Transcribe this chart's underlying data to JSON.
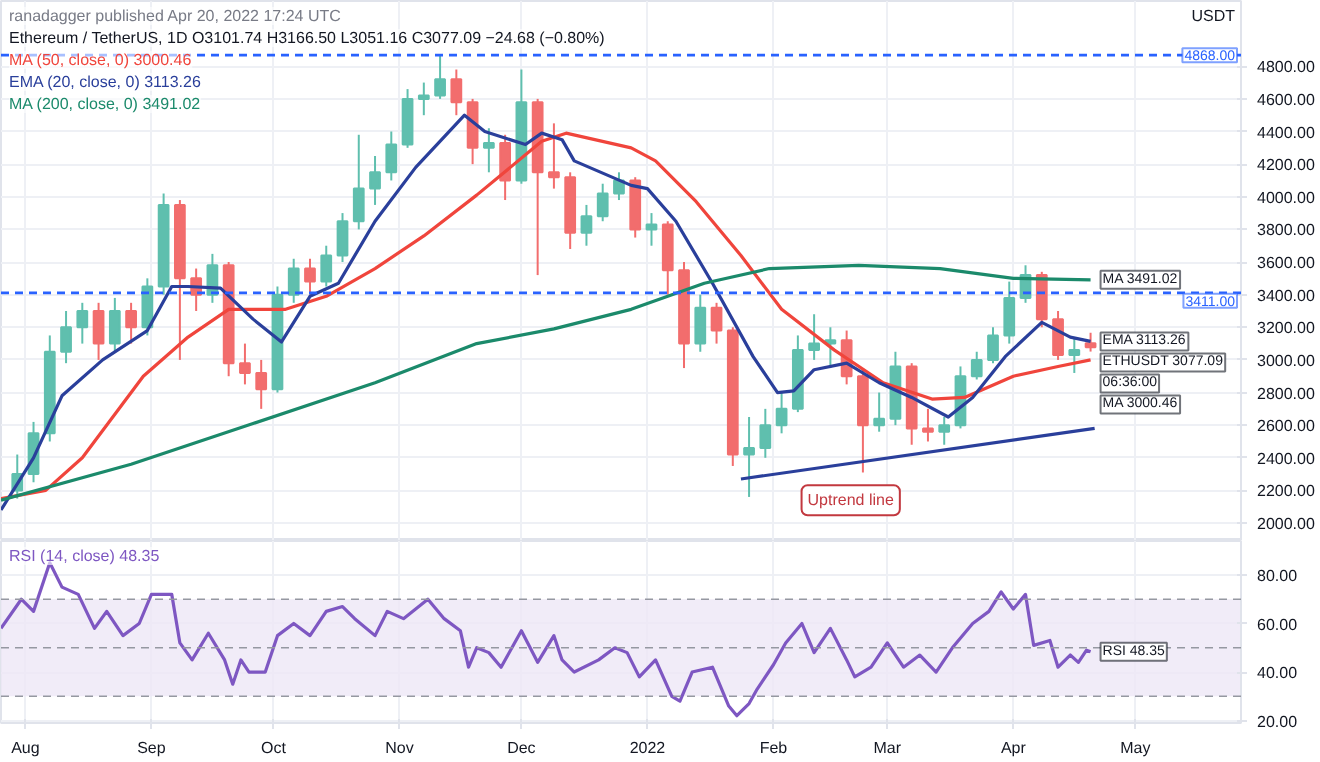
{
  "chart_data": [
    {
      "type": "candlestick",
      "title": "Ethereum / TetherUS, 1D",
      "subtitle": "O3101.74 H3166.50 L3051.16 C3077.09 −24.68 (−0.80%)",
      "ylabel": "USDT",
      "annotations": [
        "ranadagger published Apr 20, 2022 17:24 UTC",
        {
          "text": "Uptrend line",
          "x": "2022-02-20",
          "y": 2360
        },
        {
          "text": "MA 3491.02",
          "x": "2022-04-20",
          "y": 3491.02
        },
        {
          "text": "EMA 3113.26",
          "x": "2022-04-20",
          "y": 3113.26
        },
        {
          "text": "ETHUSDT 3077.09",
          "x": "2022-04-20",
          "y": 3077.09
        },
        {
          "text": "06:36:00",
          "x": "2022-04-20",
          "y": 3077.09
        },
        {
          "text": "MA 3000.46",
          "x": "2022-04-20",
          "y": 3000.46
        }
      ],
      "x": [
        "2021-07-30",
        "2021-08-03",
        "2021-08-07",
        "2021-08-11",
        "2021-08-15",
        "2021-08-19",
        "2021-08-23",
        "2021-08-27",
        "2021-08-31",
        "2021-09-04",
        "2021-09-08",
        "2021-09-12",
        "2021-09-16",
        "2021-09-20",
        "2021-09-24",
        "2021-09-28",
        "2021-10-02",
        "2021-10-06",
        "2021-10-10",
        "2021-10-14",
        "2021-10-18",
        "2021-10-22",
        "2021-10-26",
        "2021-10-30",
        "2021-11-03",
        "2021-11-07",
        "2021-11-11",
        "2021-11-15",
        "2021-11-19",
        "2021-11-23",
        "2021-11-27",
        "2021-12-01",
        "2021-12-05",
        "2021-12-09",
        "2021-12-13",
        "2021-12-17",
        "2021-12-21",
        "2021-12-25",
        "2021-12-29",
        "2022-01-02",
        "2022-01-06",
        "2022-01-10",
        "2022-01-14",
        "2022-01-18",
        "2022-01-22",
        "2022-01-26",
        "2022-01-30",
        "2022-02-03",
        "2022-02-07",
        "2022-02-11",
        "2022-02-15",
        "2022-02-19",
        "2022-02-23",
        "2022-02-27",
        "2022-03-03",
        "2022-03-07",
        "2022-03-11",
        "2022-03-15",
        "2022-03-19",
        "2022-03-23",
        "2022-03-27",
        "2022-03-31",
        "2022-04-04",
        "2022-04-08",
        "2022-04-12",
        "2022-04-16",
        "2022-04-20"
      ],
      "ohlc": [
        [
          2200,
          2420,
          2150,
          2300
        ],
        [
          2300,
          2620,
          2250,
          2550
        ],
        [
          2550,
          3150,
          2500,
          3050
        ],
        [
          3050,
          3300,
          2980,
          3200
        ],
        [
          3200,
          3350,
          3100,
          3300
        ],
        [
          3300,
          3350,
          3000,
          3100
        ],
        [
          3100,
          3380,
          3050,
          3300
        ],
        [
          3300,
          3350,
          3100,
          3200
        ],
        [
          3200,
          3500,
          3150,
          3450
        ],
        [
          3450,
          4020,
          3400,
          3950
        ],
        [
          3950,
          3980,
          3000,
          3500
        ],
        [
          3500,
          3560,
          3300,
          3400
        ],
        [
          3400,
          3650,
          3350,
          3580
        ],
        [
          3580,
          3600,
          2900,
          2980
        ],
        [
          2980,
          3100,
          2850,
          2920
        ],
        [
          2920,
          3000,
          2700,
          2820
        ],
        [
          2820,
          3450,
          2800,
          3400
        ],
        [
          3400,
          3620,
          3350,
          3560
        ],
        [
          3560,
          3620,
          3400,
          3480
        ],
        [
          3480,
          3700,
          3450,
          3640
        ],
        [
          3640,
          3900,
          3600,
          3850
        ],
        [
          3850,
          4380,
          3800,
          4050
        ],
        [
          4050,
          4250,
          3950,
          4150
        ],
        [
          4150,
          4400,
          4100,
          4320
        ],
        [
          4320,
          4660,
          4300,
          4600
        ],
        [
          4600,
          4700,
          4500,
          4620
        ],
        [
          4620,
          4868,
          4600,
          4720
        ],
        [
          4720,
          4780,
          4500,
          4580
        ],
        [
          4580,
          4600,
          4200,
          4300
        ],
        [
          4300,
          4420,
          4150,
          4330
        ],
        [
          4330,
          4380,
          3980,
          4100
        ],
        [
          4100,
          4780,
          4080,
          4580
        ],
        [
          4580,
          4600,
          3520,
          4150
        ],
        [
          4150,
          4450,
          4050,
          4120
        ],
        [
          4120,
          4150,
          3680,
          3780
        ],
        [
          3780,
          3950,
          3700,
          3880
        ],
        [
          3880,
          4080,
          3850,
          4020
        ],
        [
          4020,
          4150,
          3980,
          4100
        ],
        [
          4100,
          4120,
          3750,
          3800
        ],
        [
          3800,
          3900,
          3700,
          3830
        ],
        [
          3830,
          3850,
          3400,
          3550
        ],
        [
          3550,
          3600,
          2950,
          3100
        ],
        [
          3100,
          3400,
          3050,
          3320
        ],
        [
          3320,
          3350,
          3100,
          3180
        ],
        [
          3180,
          3200,
          2350,
          2420
        ],
        [
          2420,
          2650,
          2160,
          2460
        ],
        [
          2460,
          2700,
          2400,
          2600
        ],
        [
          2600,
          2800,
          2550,
          2700
        ],
        [
          2700,
          3150,
          2680,
          3060
        ],
        [
          3060,
          3280,
          3000,
          3100
        ],
        [
          3100,
          3200,
          2950,
          3120
        ],
        [
          3120,
          3180,
          2850,
          2900
        ],
        [
          2900,
          2950,
          2310,
          2600
        ],
        [
          2600,
          2800,
          2560,
          2640
        ],
        [
          2640,
          3050,
          2600,
          2960
        ],
        [
          2960,
          2980,
          2480,
          2580
        ],
        [
          2580,
          2700,
          2500,
          2560
        ],
        [
          2560,
          2650,
          2480,
          2600
        ],
        [
          2600,
          2960,
          2580,
          2900
        ],
        [
          2900,
          3050,
          2880,
          3000
        ],
        [
          3000,
          3200,
          2980,
          3150
        ],
        [
          3150,
          3480,
          3100,
          3380
        ],
        [
          3380,
          3580,
          3350,
          3520
        ],
        [
          3520,
          3540,
          3200,
          3250
        ],
        [
          3250,
          3300,
          3000,
          3030
        ],
        [
          3030,
          3130,
          2920,
          3060
        ],
        [
          3101.74,
          3166.5,
          3051.16,
          3077.09
        ]
      ],
      "colors": [
        "#5fbfae",
        "#5fbfae",
        "#5fbfae",
        "#5fbfae",
        "#5fbfae",
        "#f26d6d",
        "#5fbfae",
        "#f26d6d",
        "#5fbfae",
        "#5fbfae",
        "#f26d6d",
        "#f26d6d",
        "#5fbfae",
        "#f26d6d",
        "#f26d6d",
        "#f26d6d",
        "#5fbfae",
        "#5fbfae",
        "#f26d6d",
        "#5fbfae",
        "#5fbfae",
        "#5fbfae",
        "#5fbfae",
        "#5fbfae",
        "#5fbfae",
        "#5fbfae",
        "#5fbfae",
        "#f26d6d",
        "#f26d6d",
        "#5fbfae",
        "#f26d6d",
        "#5fbfae",
        "#f26d6d",
        "#f26d6d",
        "#f26d6d",
        "#5fbfae",
        "#5fbfae",
        "#5fbfae",
        "#f26d6d",
        "#5fbfae",
        "#f26d6d",
        "#f26d6d",
        "#5fbfae",
        "#f26d6d",
        "#f26d6d",
        "#5fbfae",
        "#5fbfae",
        "#5fbfae",
        "#5fbfae",
        "#5fbfae",
        "#5fbfae",
        "#f26d6d",
        "#f26d6d",
        "#5fbfae",
        "#5fbfae",
        "#f26d6d",
        "#f26d6d",
        "#5fbfae",
        "#5fbfae",
        "#5fbfae",
        "#5fbfae",
        "#5fbfae",
        "#5fbfae",
        "#f26d6d",
        "#f26d6d",
        "#5fbfae",
        "#f26d6d"
      ],
      "series": [
        {
          "type": "line",
          "name": "MA (50, close, 0) 3000.46",
          "color": "#f0453c",
          "x": [
            "2021-07-26",
            "2021-08-06",
            "2021-08-15",
            "2021-08-30",
            "2021-09-10",
            "2021-09-20",
            "2021-10-04",
            "2021-10-14",
            "2021-10-26",
            "2021-11-07",
            "2021-11-20",
            "2021-12-06",
            "2021-12-12",
            "2021-12-28",
            "2022-01-03",
            "2022-01-13",
            "2022-01-24",
            "2022-02-03",
            "2022-02-16",
            "2022-02-28",
            "2022-03-12",
            "2022-03-20",
            "2022-04-01",
            "2022-04-12",
            "2022-04-20"
          ],
          "values": [
            2150,
            2200,
            2400,
            2900,
            3140,
            3310,
            3310,
            3390,
            3560,
            3760,
            4010,
            4340,
            4390,
            4300,
            4220,
            3970,
            3640,
            3310,
            3060,
            2860,
            2760,
            2770,
            2900,
            2960,
            3000.46
          ]
        },
        {
          "type": "line",
          "name": "EMA (20, close, 0) 3113.26",
          "color": "#2a3f9b",
          "x": [
            "2021-07-26",
            "2021-08-03",
            "2021-08-10",
            "2021-08-20",
            "2021-08-31",
            "2021-09-06",
            "2021-09-10",
            "2021-09-18",
            "2021-09-26",
            "2021-10-03",
            "2021-10-10",
            "2021-10-17",
            "2021-10-26",
            "2021-11-05",
            "2021-11-17",
            "2021-11-22",
            "2021-12-02",
            "2021-12-06",
            "2021-12-11",
            "2021-12-14",
            "2021-12-28",
            "2022-01-01",
            "2022-01-08",
            "2022-01-17",
            "2022-01-27",
            "2022-02-02",
            "2022-02-06",
            "2022-02-11",
            "2022-02-19",
            "2022-02-27",
            "2022-03-07",
            "2022-03-16",
            "2022-03-22",
            "2022-03-30",
            "2022-04-08",
            "2022-04-15",
            "2022-04-20"
          ],
          "values": [
            2080,
            2400,
            2780,
            3000,
            3180,
            3450,
            3450,
            3440,
            3250,
            3110,
            3390,
            3470,
            3850,
            4180,
            4500,
            4400,
            4320,
            4390,
            4350,
            4220,
            4070,
            4050,
            3850,
            3470,
            3020,
            2800,
            2810,
            2940,
            2980,
            2860,
            2770,
            2650,
            2770,
            3020,
            3230,
            3140,
            3113.26
          ]
        },
        {
          "type": "line",
          "name": "MA (200, close, 0) 3491.02",
          "color": "#1b8a6b",
          "x": [
            "2021-07-26",
            "2021-08-27",
            "2021-09-26",
            "2021-10-26",
            "2021-11-20",
            "2021-12-09",
            "2021-12-28",
            "2022-01-15",
            "2022-01-31",
            "2022-02-22",
            "2022-03-14",
            "2022-04-01",
            "2022-04-20"
          ],
          "values": [
            2140,
            2360,
            2610,
            2860,
            3100,
            3190,
            3310,
            3470,
            3560,
            3580,
            3560,
            3500,
            3491.02
          ]
        },
        {
          "type": "line",
          "color": "#2a3f9b",
          "x": [
            "2022-01-24",
            "2022-04-21"
          ],
          "values": [
            2270,
            2580
          ]
        }
      ],
      "ref_lines": [
        {
          "axis": "y",
          "value": 4868,
          "label": "4868.00",
          "color": "#2962ff",
          "line_style": "dashed"
        },
        {
          "axis": "y",
          "value": 3411,
          "label": "3411.00",
          "color": "#2962ff",
          "line_style": "dashed"
        }
      ],
      "xlim": [
        "2021-07-26",
        "2022-05-27"
      ],
      "xticks": [
        {
          "value": "2021-08-01",
          "label": null
        },
        {
          "value": "2021-09-01",
          "label": null
        },
        {
          "value": "2021-10-01",
          "label": null
        },
        {
          "value": "2021-11-01",
          "label": null
        },
        {
          "value": "2021-12-01",
          "label": null
        },
        {
          "value": "2022-01-01",
          "label": null
        },
        {
          "value": "2022-02-01",
          "label": null
        },
        {
          "value": "2022-03-01",
          "label": null
        },
        {
          "value": "2022-04-01",
          "label": null
        },
        {
          "value": "2022-05-01",
          "label": null
        }
      ],
      "ylim": [
        1890,
        5200
      ],
      "yticks": [
        {
          "value": 2000,
          "label": "2000.00"
        },
        {
          "value": 2200,
          "label": "2200.00"
        },
        {
          "value": 2400,
          "label": "2400.00"
        },
        {
          "value": 2600,
          "label": "2600.00"
        },
        {
          "value": 2800,
          "label": "2800.00"
        },
        {
          "value": 3000,
          "label": "3000.00"
        },
        {
          "value": 3200,
          "label": "3200.00"
        },
        {
          "value": 3400,
          "label": "3400.00"
        },
        {
          "value": 3600,
          "label": "3600.00"
        },
        {
          "value": 3800,
          "label": "3800.00"
        },
        {
          "value": 4000,
          "label": "4000.00"
        },
        {
          "value": 4200,
          "label": "4200.00"
        },
        {
          "value": 4400,
          "label": "4400.00"
        },
        {
          "value": 4600,
          "label": "4600.00"
        },
        {
          "value": 4800,
          "label": "4800.00"
        }
      ],
      "grid": true,
      "legend": "top left",
      "tick_labels": "y"
    },
    {
      "type": "line",
      "annotations": [
        {
          "text": "RSI 48.35",
          "x": "2022-04-20",
          "y": 48.35
        }
      ],
      "series": [
        {
          "name": "RSI (14, close) 48.35",
          "color": "#7e57c2",
          "x": [
            "2021-07-26",
            "2021-07-31",
            "2021-08-03",
            "2021-08-07",
            "2021-08-10",
            "2021-08-14",
            "2021-08-18",
            "2021-08-21",
            "2021-08-25",
            "2021-08-29",
            "2021-09-01",
            "2021-09-06",
            "2021-09-08",
            "2021-09-11",
            "2021-09-15",
            "2021-09-19",
            "2021-09-21",
            "2021-09-23",
            "2021-09-25",
            "2021-09-29",
            "2021-10-02",
            "2021-10-06",
            "2021-10-10",
            "2021-10-14",
            "2021-10-18",
            "2021-10-21",
            "2021-10-26",
            "2021-10-29",
            "2021-11-02",
            "2021-11-08",
            "2021-11-12",
            "2021-11-16",
            "2021-11-18",
            "2021-11-20",
            "2021-11-23",
            "2021-11-26",
            "2021-12-01",
            "2021-12-05",
            "2021-12-09",
            "2021-12-11",
            "2021-12-14",
            "2021-12-20",
            "2021-12-24",
            "2021-12-27",
            "2021-12-30",
            "2022-01-03",
            "2022-01-07",
            "2022-01-09",
            "2022-01-12",
            "2022-01-17",
            "2022-01-21",
            "2022-01-23",
            "2022-01-26",
            "2022-01-28",
            "2022-02-01",
            "2022-02-04",
            "2022-02-08",
            "2022-02-11",
            "2022-02-15",
            "2022-02-19",
            "2022-02-21",
            "2022-02-25",
            "2022-03-01",
            "2022-03-05",
            "2022-03-09",
            "2022-03-13",
            "2022-03-17",
            "2022-03-22",
            "2022-03-26",
            "2022-03-29",
            "2022-04-01",
            "2022-04-04",
            "2022-04-06",
            "2022-04-10",
            "2022-04-12",
            "2022-04-15",
            "2022-04-17",
            "2022-04-19",
            "2022-04-20"
          ],
          "values": [
            58,
            70,
            65,
            85,
            75,
            72,
            58,
            65,
            55,
            60,
            72,
            72,
            52,
            45,
            56,
            45,
            35,
            45,
            40,
            40,
            55,
            60,
            55,
            65,
            67,
            62,
            55,
            65,
            62,
            70,
            62,
            57,
            42,
            50,
            48,
            42,
            57,
            44,
            55,
            45,
            40,
            45,
            50,
            48,
            38,
            45,
            30,
            28,
            40,
            42,
            26,
            22,
            27,
            33,
            43,
            52,
            60,
            48,
            58,
            45,
            38,
            42,
            52,
            42,
            47,
            40,
            50,
            60,
            65,
            73,
            66,
            72,
            51,
            53,
            42,
            47,
            44,
            49,
            48.35
          ]
        }
      ],
      "bands": [
        {
          "axis": "y",
          "from": 30,
          "to": 70,
          "color": "#ede7f6"
        }
      ],
      "ref_lines": [
        {
          "axis": "y",
          "value": 70,
          "color": "#9598a1",
          "line_style": "dashed"
        },
        {
          "axis": "y",
          "value": 50,
          "color": "#9598a1",
          "line_style": "dashed"
        },
        {
          "axis": "y",
          "value": 30,
          "color": "#9598a1",
          "line_style": "dashed"
        }
      ],
      "xlim": [
        "2021-07-26",
        "2022-05-27"
      ],
      "xticks": [
        {
          "value": "2021-08-01",
          "label": "Aug"
        },
        {
          "value": "2021-09-01",
          "label": "Sep"
        },
        {
          "value": "2021-10-01",
          "label": "Oct"
        },
        {
          "value": "2021-11-01",
          "label": "Nov"
        },
        {
          "value": "2021-12-01",
          "label": "Dec"
        },
        {
          "value": "2022-01-01",
          "label": "2022"
        },
        {
          "value": "2022-02-01",
          "label": "Feb"
        },
        {
          "value": "2022-03-01",
          "label": "Mar"
        },
        {
          "value": "2022-04-01",
          "label": "Apr"
        },
        {
          "value": "2022-05-01",
          "label": "May"
        }
      ],
      "ylim": [
        19,
        94
      ],
      "yticks": [
        {
          "value": 20,
          "label": "20.00"
        },
        {
          "value": 40,
          "label": "40.00"
        },
        {
          "value": 60,
          "label": "60.00"
        },
        {
          "value": 80,
          "label": "80.00"
        }
      ],
      "grid": true,
      "legend": "top left"
    }
  ]
}
